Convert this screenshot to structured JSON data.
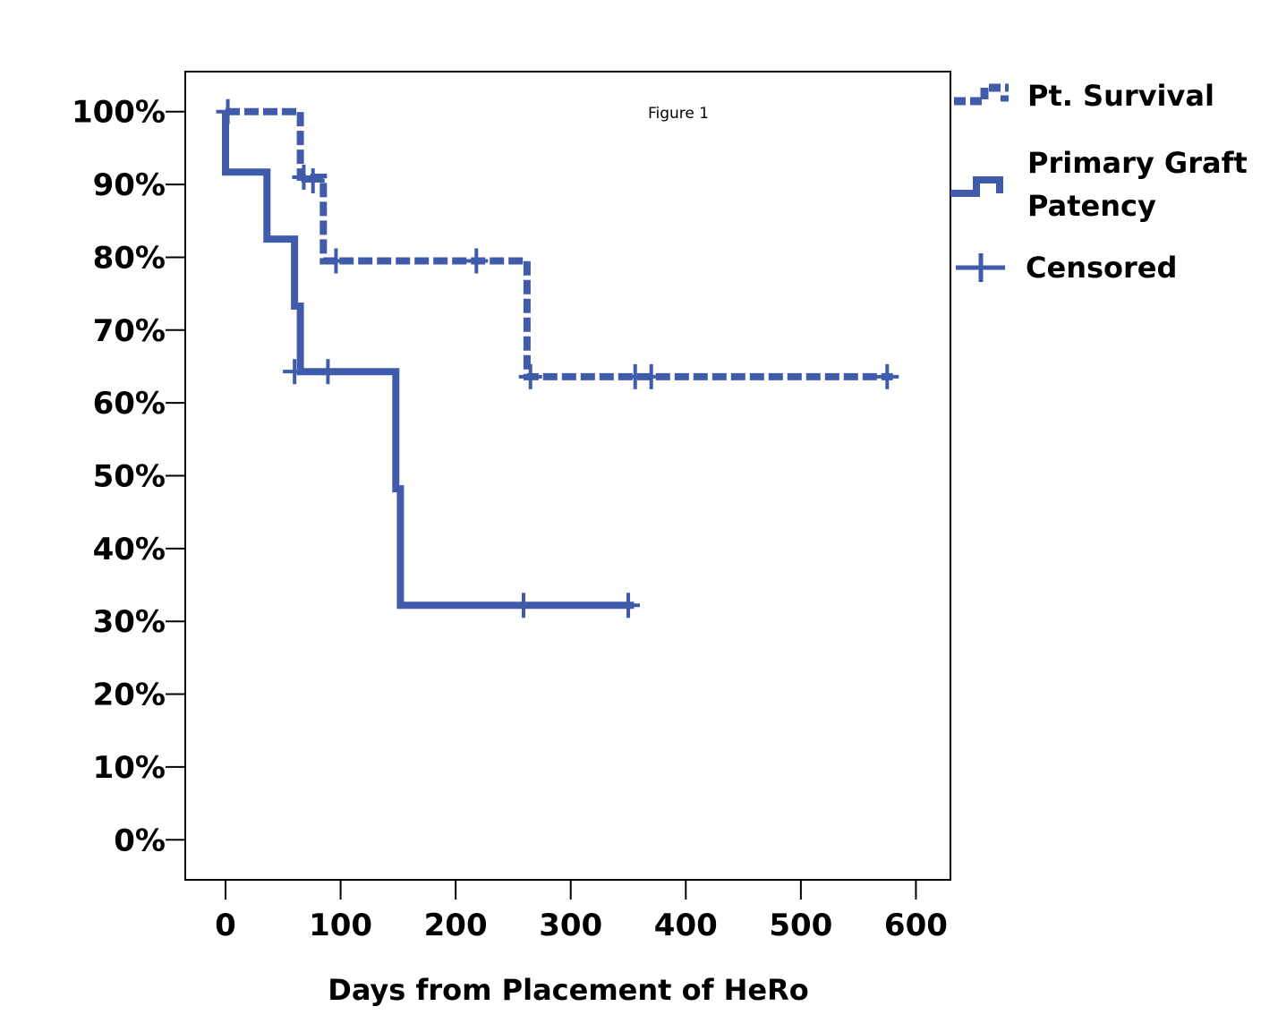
{
  "chart_data": {
    "type": "line",
    "subtype": "kaplan-meier step",
    "annotation": "Figure 1",
    "xlabel": "Days from Placement of HeRo",
    "ylabel": "",
    "xlim": [
      -35,
      630
    ],
    "ylim": [
      -5.5,
      105.5
    ],
    "x_ticks": [
      0,
      100,
      200,
      300,
      400,
      500,
      600
    ],
    "x_tick_labels": [
      "0",
      "100",
      "200",
      "300",
      "400",
      "500",
      "600"
    ],
    "y_ticks": [
      0,
      10,
      20,
      30,
      40,
      50,
      60,
      70,
      80,
      90,
      100
    ],
    "y_tick_labels": [
      "0%",
      "10%",
      "20%",
      "30%",
      "40%",
      "50%",
      "60%",
      "70%",
      "80%",
      "90%",
      "100%"
    ],
    "grid": false,
    "legend_position": "right",
    "color": "#3F5BAA",
    "series": [
      {
        "name": "Pt. Survival",
        "style": "dashed",
        "steps": [
          [
            0,
            100
          ],
          [
            65,
            100
          ],
          [
            65,
            91
          ],
          [
            85,
            91
          ],
          [
            85,
            79.5
          ],
          [
            262,
            79.5
          ],
          [
            262,
            63.6
          ],
          [
            580,
            63.6
          ]
        ],
        "censored": [
          [
            2,
            100
          ],
          [
            68,
            91
          ],
          [
            76,
            90.5
          ],
          [
            96,
            79.5
          ],
          [
            218,
            79.5
          ],
          [
            265,
            63.6
          ],
          [
            356,
            63.6
          ],
          [
            370,
            63.6
          ],
          [
            575,
            63.6
          ]
        ]
      },
      {
        "name": "Primary Graft Patency",
        "style": "solid",
        "steps": [
          [
            0,
            100
          ],
          [
            0,
            91.7
          ],
          [
            36,
            91.7
          ],
          [
            36,
            82.5
          ],
          [
            60,
            82.5
          ],
          [
            60,
            73.3
          ],
          [
            65,
            73.3
          ],
          [
            65,
            64.3
          ],
          [
            148,
            64.3
          ],
          [
            148,
            48.2
          ],
          [
            152,
            48.2
          ],
          [
            152,
            32.2
          ],
          [
            355,
            32.2
          ]
        ],
        "censored": [
          [
            60,
            64.3
          ],
          [
            89,
            64.3
          ],
          [
            259,
            32.2
          ],
          [
            350,
            32.2
          ]
        ]
      }
    ],
    "legend": {
      "entries": [
        {
          "label_lines": [
            "Pt. Survival"
          ],
          "marker": "dashed-step"
        },
        {
          "label_lines": [
            "Primary Graft",
            "Patency"
          ],
          "marker": "solid-step"
        },
        {
          "label_lines": [
            "Censored"
          ],
          "marker": "plus"
        }
      ]
    }
  }
}
